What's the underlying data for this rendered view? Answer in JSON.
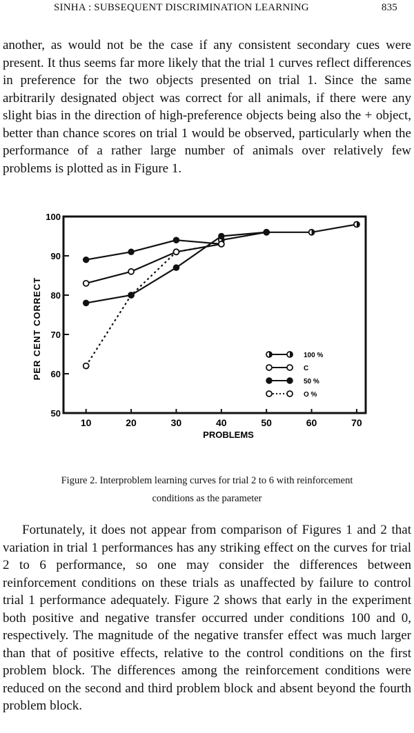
{
  "header": {
    "running_title": "SINHA : SUBSEQUENT DISCRIMINATION LEARNING",
    "page_number": "835"
  },
  "paragraphs": {
    "p1": "another, as would not be the case if any consistent secondary cues were present. It thus seems far more likely that the trial 1 curves reflect differences in preference for the two objects presented on trial 1. Since the same arbitrarily designated object was correct for all animals, if there were any slight bias in the direction of high-preference objects being also the + object, better than chance scores on trial 1 would be observed, particularly when the performance of a rather large number of animals over relatively few problems is plotted as in Figure 1.",
    "p2": "Fortunately, it does not appear from comparison of Figures 1 and 2 that variation in trial 1 performances has any striking effect on the curves for trial 2 to 6 performance, so one may consider the differences between reinforcement conditions on these trials as unaffected by failure to control trial 1 performance adequately. Figure 2 shows that early in the experiment both positive and negative transfer occurred under conditions 100 and 0, respectively. The magnitude of the negative transfer effect was much larger than that of positive effects, relative to the control conditions on the first problem block. The differences among the reinforcement conditions were reduced on the second and third problem block and absent beyond the fourth problem block."
  },
  "figure": {
    "caption": "Figure 2. Interproblem learning curves for trial 2 to 6 with reinforcement conditions as the parameter"
  },
  "chart_data": {
    "type": "line",
    "title": "",
    "xlabel": "PROBLEMS",
    "ylabel": "PER CENT CORRECT",
    "x": [
      10,
      20,
      30,
      40,
      50,
      60,
      70
    ],
    "x_ticks": [
      "10",
      "20",
      "30",
      "40",
      "50",
      "60",
      "70"
    ],
    "y_ticks": [
      "50",
      "60",
      "70",
      "80",
      "90",
      "100"
    ],
    "xlim": [
      5,
      72
    ],
    "ylim": [
      50,
      100
    ],
    "grid": false,
    "legend_position": "bottom-right",
    "series": [
      {
        "name": "100 %",
        "marker": "half-filled",
        "line": "solid",
        "x": [
          40,
          50,
          60,
          70
        ],
        "values": [
          94,
          96,
          96,
          98
        ]
      },
      {
        "name": "C",
        "marker": "open",
        "line": "solid",
        "x": [
          10,
          20,
          30,
          40
        ],
        "values": [
          83,
          86,
          91,
          93
        ]
      },
      {
        "name": "50 %",
        "marker": "filled",
        "line": "solid",
        "x": [
          10,
          20,
          30,
          40
        ],
        "values": [
          89,
          91,
          94,
          93
        ]
      },
      {
        "name": "O %",
        "marker": "open",
        "line": "dashed",
        "x": [
          10,
          20,
          30,
          40
        ],
        "values": [
          62,
          80,
          91,
          93
        ]
      },
      {
        "name": "",
        "marker": "filled",
        "line": "solid",
        "x": [
          10,
          20,
          30,
          40,
          50
        ],
        "values": [
          78,
          80,
          87,
          95,
          96
        ]
      }
    ]
  }
}
